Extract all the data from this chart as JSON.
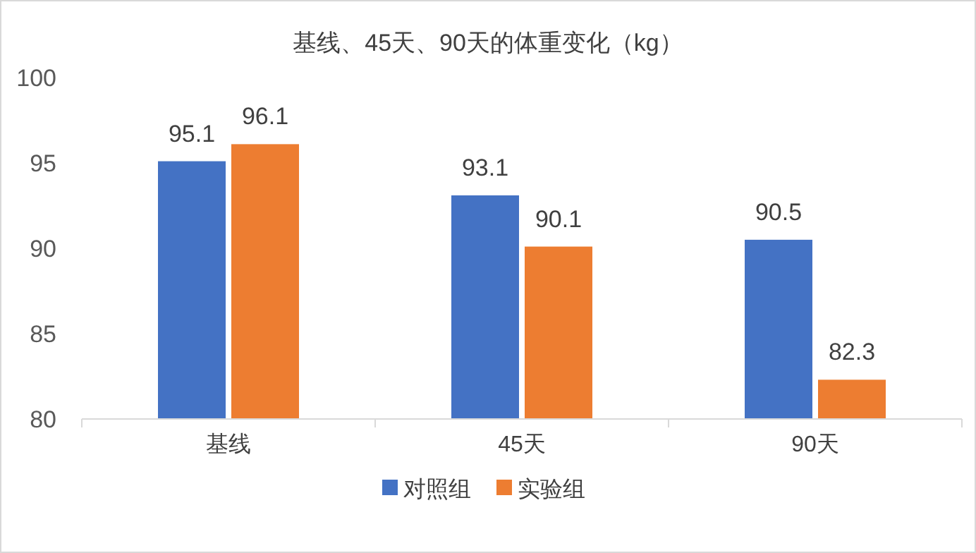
{
  "chart_data": {
    "type": "bar",
    "title": "基线、45天、90天的体重变化（kg）",
    "categories": [
      "基线",
      "45天",
      "90天"
    ],
    "series": [
      {
        "name": "对照组",
        "color": "#4472c4",
        "values": [
          95.1,
          93.1,
          90.5
        ]
      },
      {
        "name": "实验组",
        "color": "#ed7d31",
        "values": [
          96.1,
          90.1,
          82.3
        ]
      }
    ],
    "ylim": [
      80,
      100
    ],
    "yticks": [
      80,
      85,
      90,
      95,
      100
    ],
    "grid": false,
    "legend": "bottom",
    "data_labels": true
  }
}
